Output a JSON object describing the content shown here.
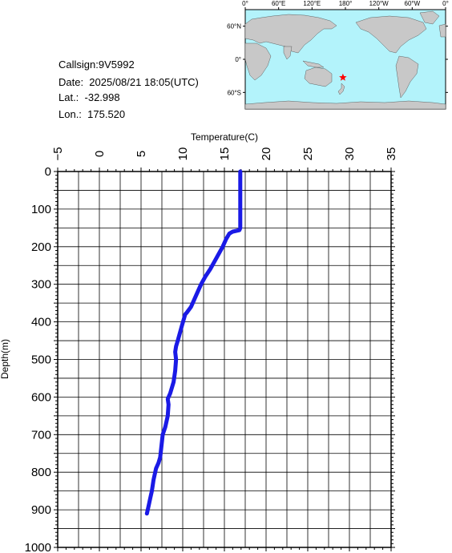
{
  "info": {
    "callsign": "Callsign:9V5992",
    "date": "Date:  2025/08/21 18:05(UTC)",
    "lat": "Lat.:  -32.998",
    "lon": "Lon.:  175.520"
  },
  "map": {
    "lon_labels": [
      "0°",
      "60°E",
      "120°E",
      "180°",
      "120°W",
      "60°W",
      "0°"
    ],
    "lat_labels": [
      "60°N",
      "0°",
      "60°S"
    ],
    "ocean_color": "#b3f3fb",
    "land_color": "#c8c8c8",
    "marker": {
      "lat": -32.998,
      "lon": 175.52,
      "color": "#ff0000"
    }
  },
  "chart_data": {
    "type": "line",
    "xlabel": "Temperature(C)",
    "ylabel": "Depth(m)",
    "xlim": [
      -5,
      35
    ],
    "ylim": [
      1000,
      0
    ],
    "x_ticks": [
      -5,
      0,
      5,
      10,
      15,
      20,
      25,
      30,
      35
    ],
    "y_ticks": [
      0,
      100,
      200,
      300,
      400,
      500,
      600,
      700,
      800,
      900,
      1000
    ],
    "line_color": "#1a1ae6",
    "series": [
      {
        "x": [
          16.9,
          16.9,
          16.9,
          16.9,
          16.8,
          16.0,
          15.6,
          15.2,
          14.8,
          14.3,
          13.8,
          13.3,
          12.7,
          12.2,
          11.6,
          11.0,
          10.5,
          10.3,
          9.9,
          9.4,
          9.2,
          9.1,
          9.2,
          9.1,
          8.9,
          8.5,
          8.2,
          8.3,
          8.2,
          7.9,
          7.6,
          7.5,
          7.3,
          7.1,
          6.8,
          6.5,
          6.3,
          6.1,
          5.9,
          5.7
        ],
        "y": [
          0,
          50,
          100,
          150,
          156,
          160,
          165,
          180,
          200,
          220,
          240,
          260,
          280,
          300,
          330,
          360,
          375,
          380,
          410,
          450,
          465,
          480,
          500,
          530,
          560,
          590,
          605,
          620,
          650,
          680,
          700,
          720,
          760,
          775,
          790,
          820,
          850,
          870,
          890,
          910
        ]
      }
    ]
  }
}
